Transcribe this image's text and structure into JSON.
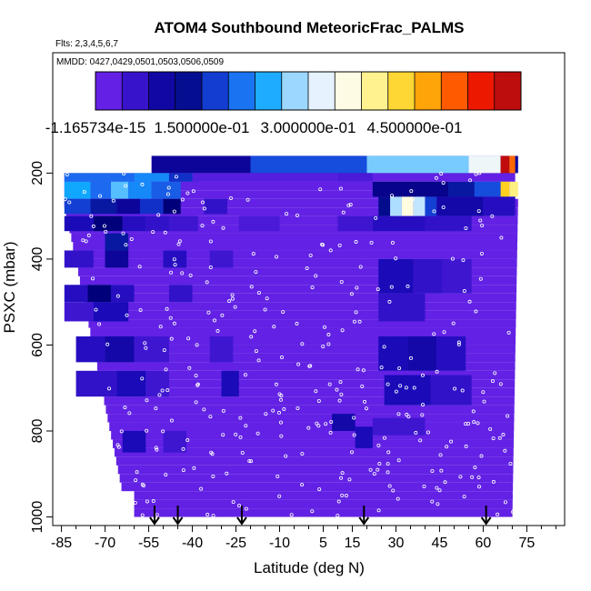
{
  "chart_data": {
    "type": "heatmap",
    "title": "ATOM4 Southbound MeteoricFrac_PALMS",
    "flights_note": "Flts: 2,3,4,5,6,7",
    "dates_note": "MMDD: 0427,0429,0501,0503,0506,0509",
    "xlabel": "Latitude (deg N)",
    "ylabel": "PSXC (mbar)",
    "xlim": [
      -88,
      88
    ],
    "ylim": [
      1020,
      -80
    ],
    "x_ticks": [
      -85,
      -70,
      -55,
      -40,
      -25,
      -10,
      5,
      15,
      30,
      45,
      60,
      75
    ],
    "y_ticks": [
      200,
      400,
      600,
      800,
      1000
    ],
    "colorbar": {
      "min": 0,
      "max": 0.6,
      "tick_values": [
        0,
        0.15,
        0.3,
        0.45
      ],
      "tick_labels": [
        "-1.165734e-15",
        "1.500000e-01",
        "3.000000e-01",
        "4.500000e-01"
      ],
      "colors": [
        "#7a28f0",
        "#4a1ad8",
        "#1a0ab8",
        "#00007a",
        "#1030c8",
        "#1c6af0",
        "#10a8ff",
        "#9ad6ff",
        "#e8f4ff",
        "#fffce0",
        "#fff080",
        "#ffd020",
        "#ff9400",
        "#ff3c00",
        "#e00000",
        "#a01818"
      ]
    },
    "background_value": 0.02,
    "arrow_latitudes": [
      -53,
      -45,
      -23,
      19,
      61
    ],
    "cells": [
      {
        "lat": [
          -54,
          72
        ],
        "p": [
          160,
          200
        ],
        "v": 0.1
      },
      {
        "lat": [
          -20,
          20
        ],
        "p": [
          160,
          200
        ],
        "v": 0.18
      },
      {
        "lat": [
          20,
          55
        ],
        "p": [
          160,
          200
        ],
        "v": 0.27
      },
      {
        "lat": [
          55,
          66
        ],
        "p": [
          160,
          200
        ],
        "v": 0.33
      },
      {
        "lat": [
          66,
          69
        ],
        "p": [
          160,
          200
        ],
        "v": 0.58
      },
      {
        "lat": [
          69,
          71
        ],
        "p": [
          160,
          200
        ],
        "v": 0.5
      },
      {
        "lat": [
          -84,
          -60
        ],
        "p": [
          200,
          220
        ],
        "v": 0.2
      },
      {
        "lat": [
          -60,
          -48
        ],
        "p": [
          200,
          220
        ],
        "v": 0.22
      },
      {
        "lat": [
          -48,
          -38
        ],
        "p": [
          200,
          220
        ],
        "v": 0.16
      },
      {
        "lat": [
          -40,
          10
        ],
        "p": [
          200,
          220
        ],
        "v": 0.03
      },
      {
        "lat": [
          10,
          22
        ],
        "p": [
          200,
          220
        ],
        "v": 0.04
      },
      {
        "lat": [
          22,
          48
        ],
        "p": [
          220,
          255
        ],
        "v": 0.11
      },
      {
        "lat": [
          48,
          57
        ],
        "p": [
          220,
          255
        ],
        "v": 0.14
      },
      {
        "lat": [
          57,
          66
        ],
        "p": [
          220,
          255
        ],
        "v": 0.18
      },
      {
        "lat": [
          66,
          69
        ],
        "p": [
          220,
          255
        ],
        "v": 0.44
      },
      {
        "lat": [
          69,
          72
        ],
        "p": [
          220,
          255
        ],
        "v": 0.4
      },
      {
        "lat": [
          -84,
          -75
        ],
        "p": [
          220,
          260
        ],
        "v": 0.24
      },
      {
        "lat": [
          -75,
          -68
        ],
        "p": [
          220,
          260
        ],
        "v": 0.2
      },
      {
        "lat": [
          -68,
          -62
        ],
        "p": [
          220,
          260
        ],
        "v": 0.26
      },
      {
        "lat": [
          -62,
          -54
        ],
        "p": [
          220,
          260
        ],
        "v": 0.22
      },
      {
        "lat": [
          -54,
          -44
        ],
        "p": [
          220,
          260
        ],
        "v": 0.19
      },
      {
        "lat": [
          -84,
          -75
        ],
        "p": [
          260,
          295
        ],
        "v": 0.17
      },
      {
        "lat": [
          -75,
          -66
        ],
        "p": [
          260,
          295
        ],
        "v": 0.14
      },
      {
        "lat": [
          -66,
          -58
        ],
        "p": [
          260,
          295
        ],
        "v": 0.1
      },
      {
        "lat": [
          -58,
          -50
        ],
        "p": [
          260,
          295
        ],
        "v": 0.16
      },
      {
        "lat": [
          -50,
          -44
        ],
        "p": [
          260,
          295
        ],
        "v": 0.12
      },
      {
        "lat": [
          -36,
          -28
        ],
        "p": [
          260,
          295
        ],
        "v": 0.06
      },
      {
        "lat": [
          24,
          28
        ],
        "p": [
          255,
          300
        ],
        "v": 0.13
      },
      {
        "lat": [
          28,
          32
        ],
        "p": [
          255,
          300
        ],
        "v": 0.29
      },
      {
        "lat": [
          32,
          36
        ],
        "p": [
          255,
          300
        ],
        "v": 0.36
      },
      {
        "lat": [
          36,
          40
        ],
        "p": [
          255,
          300
        ],
        "v": 0.3
      },
      {
        "lat": [
          40,
          44
        ],
        "p": [
          255,
          300
        ],
        "v": 0.17
      },
      {
        "lat": [
          44,
          60
        ],
        "p": [
          255,
          300
        ],
        "v": 0.09
      },
      {
        "lat": [
          60,
          71
        ],
        "p": [
          255,
          300
        ],
        "v": 0.07
      },
      {
        "lat": [
          -84,
          -74
        ],
        "p": [
          300,
          335
        ],
        "v": 0.08
      },
      {
        "lat": [
          -74,
          -64
        ],
        "p": [
          300,
          335
        ],
        "v": 0.12
      },
      {
        "lat": [
          -64,
          -56
        ],
        "p": [
          300,
          335
        ],
        "v": 0.07
      },
      {
        "lat": [
          -56,
          -48
        ],
        "p": [
          300,
          335
        ],
        "v": 0.06
      },
      {
        "lat": [
          -48,
          -38
        ],
        "p": [
          300,
          335
        ],
        "v": 0.05
      },
      {
        "lat": [
          -24,
          -10
        ],
        "p": [
          300,
          335
        ],
        "v": 0.04
      },
      {
        "lat": [
          10,
          22
        ],
        "p": [
          300,
          335
        ],
        "v": 0.05
      },
      {
        "lat": [
          22,
          40
        ],
        "p": [
          300,
          335
        ],
        "v": 0.07
      },
      {
        "lat": [
          40,
          56
        ],
        "p": [
          300,
          335
        ],
        "v": 0.06
      },
      {
        "lat": [
          -84,
          -74
        ],
        "p": [
          380,
          420
        ],
        "v": 0.06
      },
      {
        "lat": [
          -70,
          -62
        ],
        "p": [
          340,
          380
        ],
        "v": 0.14
      },
      {
        "lat": [
          -70,
          -62
        ],
        "p": [
          380,
          420
        ],
        "v": 0.1
      },
      {
        "lat": [
          -50,
          -42
        ],
        "p": [
          380,
          420
        ],
        "v": 0.07
      },
      {
        "lat": [
          -34,
          -26
        ],
        "p": [
          380,
          420
        ],
        "v": 0.05
      },
      {
        "lat": [
          24,
          36
        ],
        "p": [
          400,
          480
        ],
        "v": 0.08
      },
      {
        "lat": [
          36,
          46
        ],
        "p": [
          400,
          480
        ],
        "v": 0.06
      },
      {
        "lat": [
          46,
          56
        ],
        "p": [
          400,
          480
        ],
        "v": 0.05
      },
      {
        "lat": [
          -84,
          -76
        ],
        "p": [
          460,
          500
        ],
        "v": 0.07
      },
      {
        "lat": [
          -76,
          -68
        ],
        "p": [
          460,
          500
        ],
        "v": 0.12
      },
      {
        "lat": [
          -68,
          -60
        ],
        "p": [
          460,
          500
        ],
        "v": 0.07
      },
      {
        "lat": [
          -48,
          -40
        ],
        "p": [
          460,
          500
        ],
        "v": 0.06
      },
      {
        "lat": [
          -84,
          -74
        ],
        "p": [
          500,
          545
        ],
        "v": 0.05
      },
      {
        "lat": [
          -74,
          -62
        ],
        "p": [
          500,
          545
        ],
        "v": 0.08
      },
      {
        "lat": [
          24,
          40
        ],
        "p": [
          480,
          545
        ],
        "v": 0.06
      },
      {
        "lat": [
          -80,
          -70
        ],
        "p": [
          580,
          640
        ],
        "v": 0.07
      },
      {
        "lat": [
          -70,
          -60
        ],
        "p": [
          580,
          640
        ],
        "v": 0.09
      },
      {
        "lat": [
          -60,
          -48
        ],
        "p": [
          580,
          640
        ],
        "v": 0.05
      },
      {
        "lat": [
          -34,
          -26
        ],
        "p": [
          580,
          640
        ],
        "v": 0.05
      },
      {
        "lat": [
          24,
          34
        ],
        "p": [
          580,
          660
        ],
        "v": 0.08
      },
      {
        "lat": [
          34,
          44
        ],
        "p": [
          580,
          660
        ],
        "v": 0.09
      },
      {
        "lat": [
          44,
          54
        ],
        "p": [
          580,
          660
        ],
        "v": 0.07
      },
      {
        "lat": [
          -80,
          -66
        ],
        "p": [
          660,
          720
        ],
        "v": 0.06
      },
      {
        "lat": [
          -66,
          -56
        ],
        "p": [
          660,
          720
        ],
        "v": 0.08
      },
      {
        "lat": [
          -56,
          -48
        ],
        "p": [
          660,
          720
        ],
        "v": 0.05
      },
      {
        "lat": [
          -30,
          -24
        ],
        "p": [
          660,
          720
        ],
        "v": 0.08
      },
      {
        "lat": [
          26,
          42
        ],
        "p": [
          670,
          740
        ],
        "v": 0.08
      },
      {
        "lat": [
          42,
          56
        ],
        "p": [
          670,
          740
        ],
        "v": 0.06
      },
      {
        "lat": [
          8,
          16
        ],
        "p": [
          760,
          800
        ],
        "v": 0.09
      },
      {
        "lat": [
          16,
          22
        ],
        "p": [
          790,
          840
        ],
        "v": 0.08
      },
      {
        "lat": [
          22,
          40
        ],
        "p": [
          770,
          810
        ],
        "v": 0.05
      },
      {
        "lat": [
          -64,
          -56
        ],
        "p": [
          800,
          850
        ],
        "v": 0.08
      },
      {
        "lat": [
          -50,
          -42
        ],
        "p": [
          800,
          850
        ],
        "v": 0.05
      }
    ]
  }
}
